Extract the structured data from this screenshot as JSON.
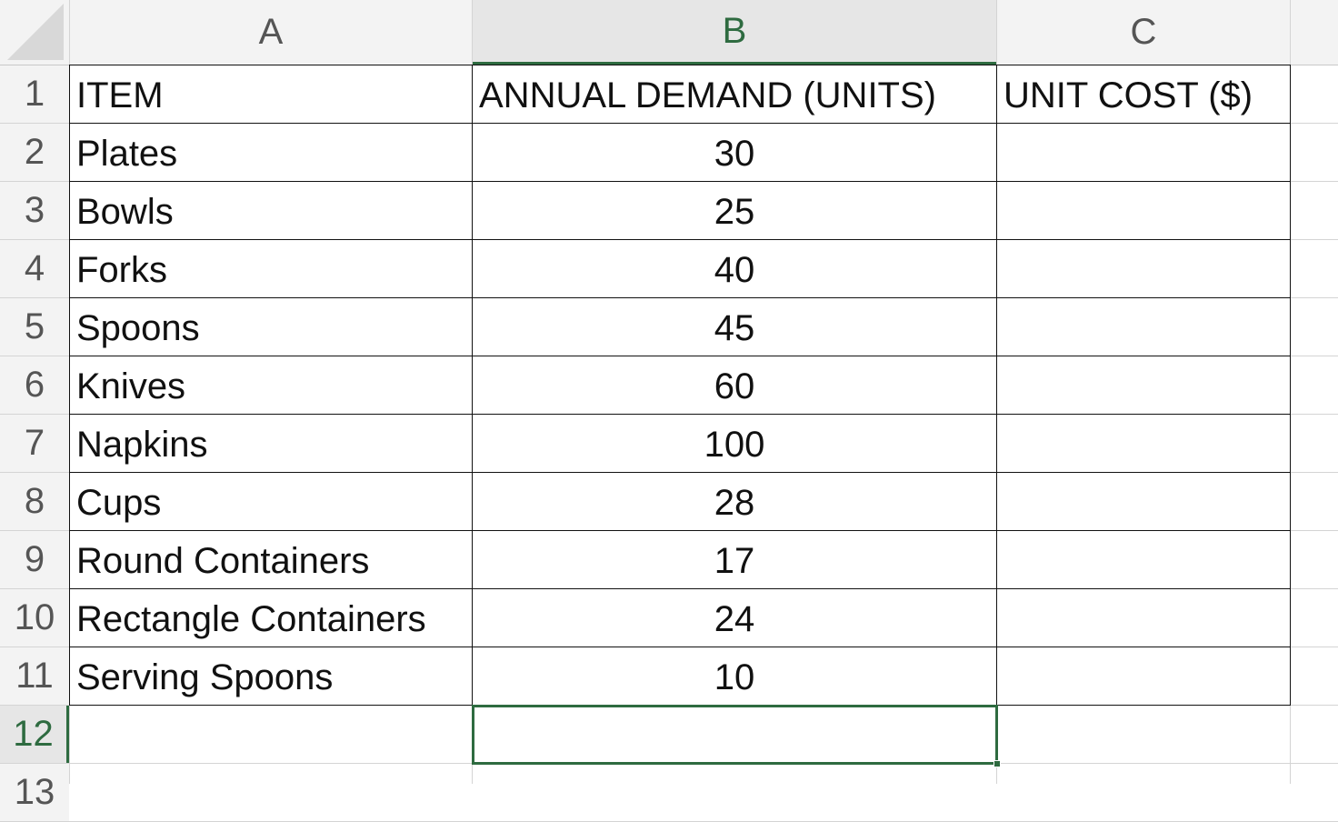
{
  "sheet": {
    "columns": [
      "A",
      "B",
      "C"
    ],
    "row_numbers": [
      1,
      2,
      3,
      4,
      5,
      6,
      7,
      8,
      9,
      10,
      11,
      12,
      13
    ],
    "header": [
      "ITEM",
      "ANNUAL DEMAND (UNITS)",
      "UNIT COST ($)"
    ],
    "rows": [
      {
        "item": "Plates",
        "demand": 30
      },
      {
        "item": "Bowls",
        "demand": 25
      },
      {
        "item": "Forks",
        "demand": 40
      },
      {
        "item": "Spoons",
        "demand": 45
      },
      {
        "item": "Knives",
        "demand": 60
      },
      {
        "item": "Napkins",
        "demand": 100
      },
      {
        "item": "Cups",
        "demand": 28
      },
      {
        "item": "Round Containers",
        "demand": 17
      },
      {
        "item": "Rectangle Containers",
        "demand": 24
      },
      {
        "item": "Serving Spoons",
        "demand": 10
      }
    ]
  }
}
